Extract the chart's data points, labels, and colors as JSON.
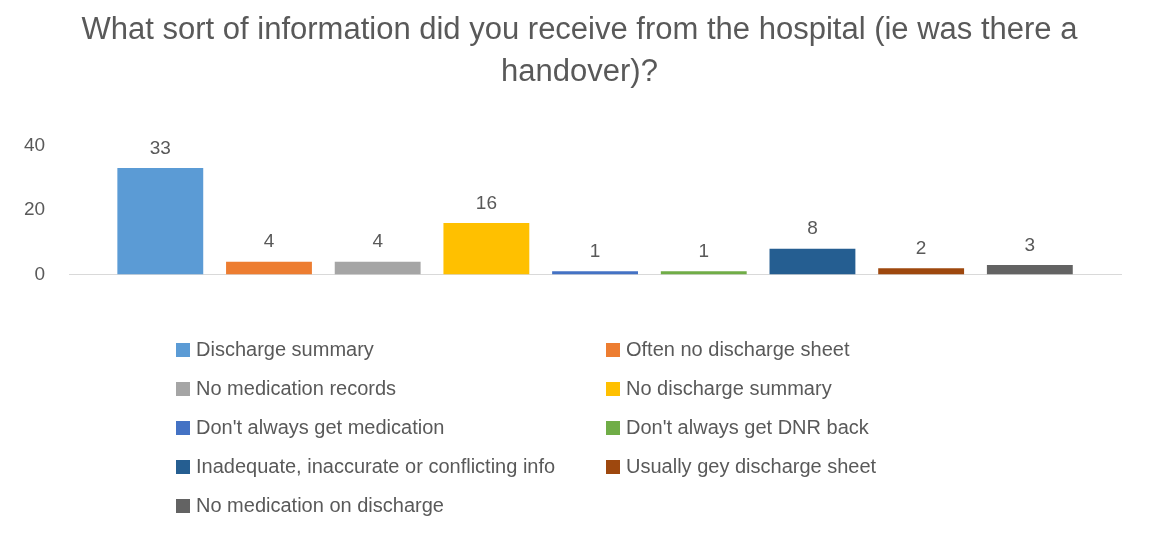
{
  "chart_data": {
    "type": "bar",
    "title": "What sort of information did you receive from the hospital (ie was there a handover)?",
    "categories": [
      null
    ],
    "series": [
      {
        "name": "Discharge summary",
        "color": "#5b9bd5",
        "values": [
          33
        ]
      },
      {
        "name": "Often no discharge sheet",
        "color": "#ed7d31",
        "values": [
          4
        ]
      },
      {
        "name": "No medication records",
        "color": "#a5a5a5",
        "values": [
          4
        ]
      },
      {
        "name": "No discharge summary",
        "color": "#ffc000",
        "values": [
          16
        ]
      },
      {
        "name": "Don't always get medication",
        "color": "#4472c4",
        "values": [
          1
        ]
      },
      {
        "name": "Don't always get DNR back",
        "color": "#70ad47",
        "values": [
          1
        ]
      },
      {
        "name": "Inadequate, inaccurate or conflicting info",
        "color": "#255e91",
        "values": [
          8
        ]
      },
      {
        "name": "Usually gey discharge sheet",
        "color": "#9e480e",
        "values": [
          2
        ]
      },
      {
        "name": "No medication on discharge",
        "color": "#636363",
        "values": [
          3
        ]
      }
    ],
    "ylim": [
      0,
      40
    ],
    "yticks": [
      0,
      20,
      40
    ],
    "grid": false,
    "legend": "bottom",
    "data_labels": true
  }
}
